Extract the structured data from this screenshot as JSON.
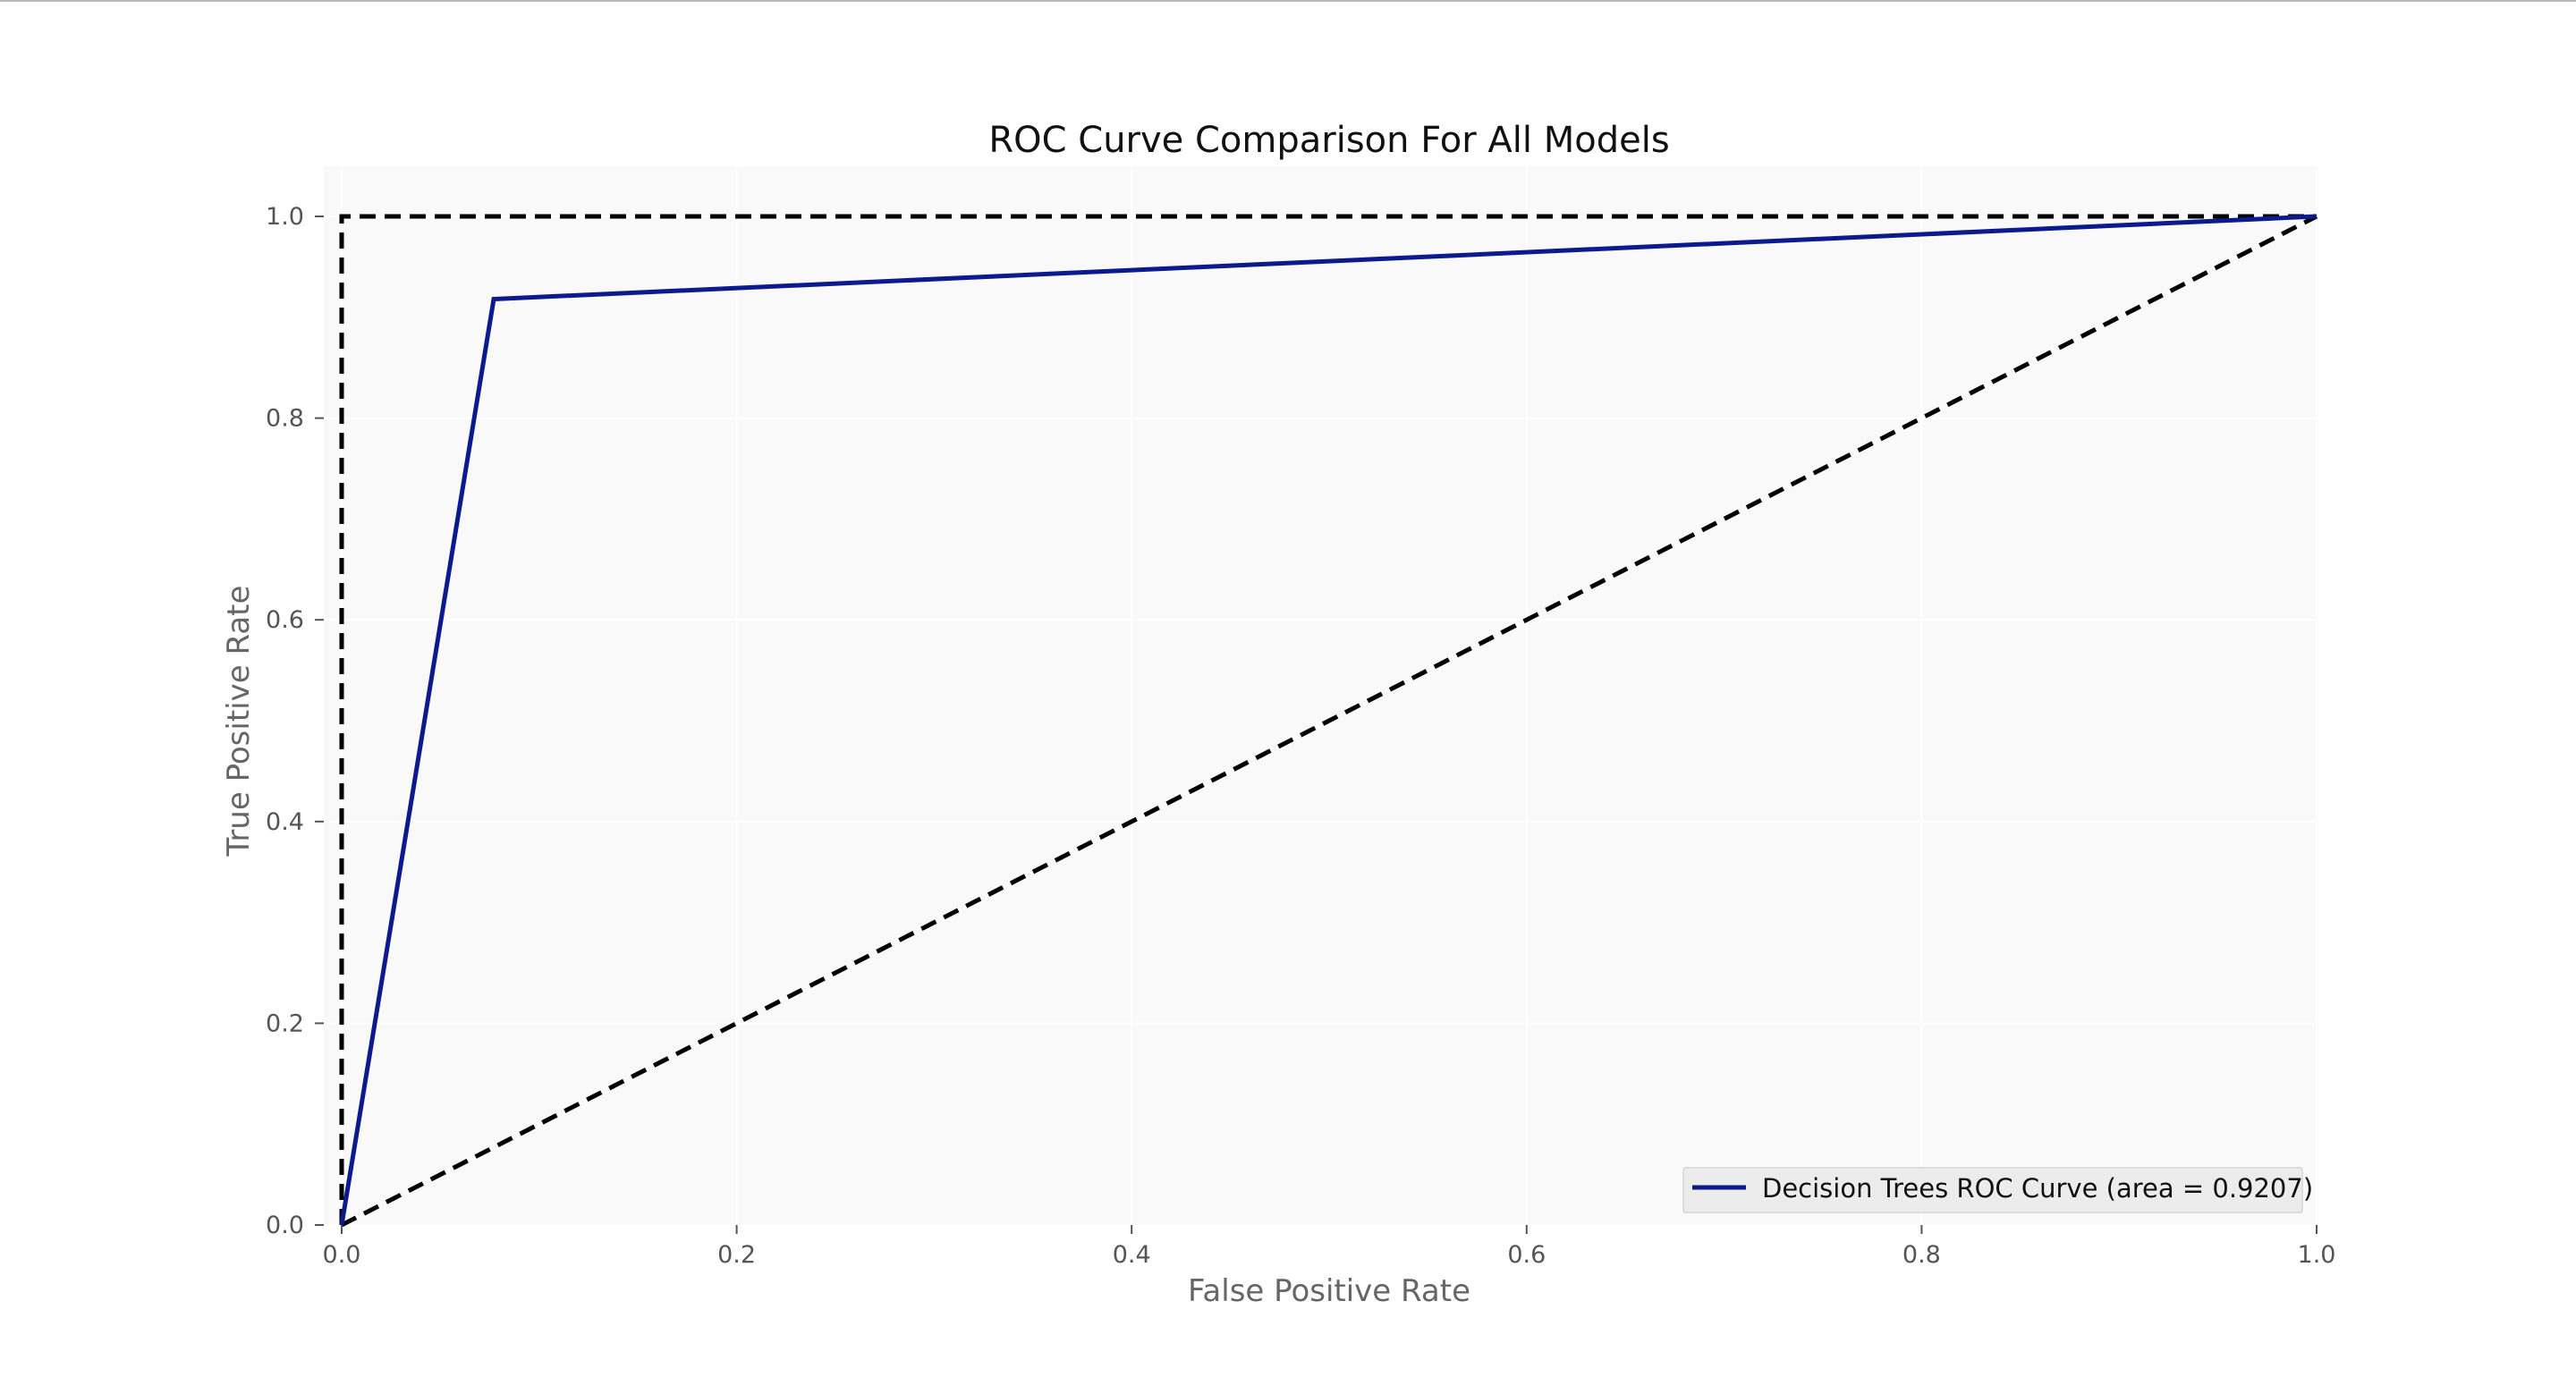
{
  "chart_data": {
    "type": "line",
    "title": "ROC Curve Comparison For All Models",
    "xlabel": "False Positive Rate",
    "ylabel": "True Positive Rate",
    "xlim": [
      0.0,
      1.0
    ],
    "ylim": [
      0.0,
      1.0
    ],
    "x_ticks": [
      "0.0",
      "0.2",
      "0.4",
      "0.6",
      "0.8",
      "1.0"
    ],
    "y_ticks": [
      "0.0",
      "0.2",
      "0.4",
      "0.6",
      "0.8",
      "1.0"
    ],
    "grid": true,
    "legend_position": "lower right",
    "series": [
      {
        "name": "Decision Trees ROC Curve (area = 0.9207)",
        "x": [
          0.0,
          0.077,
          1.0
        ],
        "y": [
          0.0,
          0.918,
          1.0
        ],
        "color": "#0b1a8c",
        "style": "solid"
      }
    ],
    "reference_lines": [
      {
        "x": [
          0.0,
          0.0,
          1.0
        ],
        "y": [
          0.0,
          1.0,
          1.0
        ],
        "color": "#000000",
        "style": "dashed"
      },
      {
        "x": [
          0.0,
          1.0
        ],
        "y": [
          0.0,
          1.0
        ],
        "color": "#000000",
        "style": "dashed"
      }
    ]
  }
}
